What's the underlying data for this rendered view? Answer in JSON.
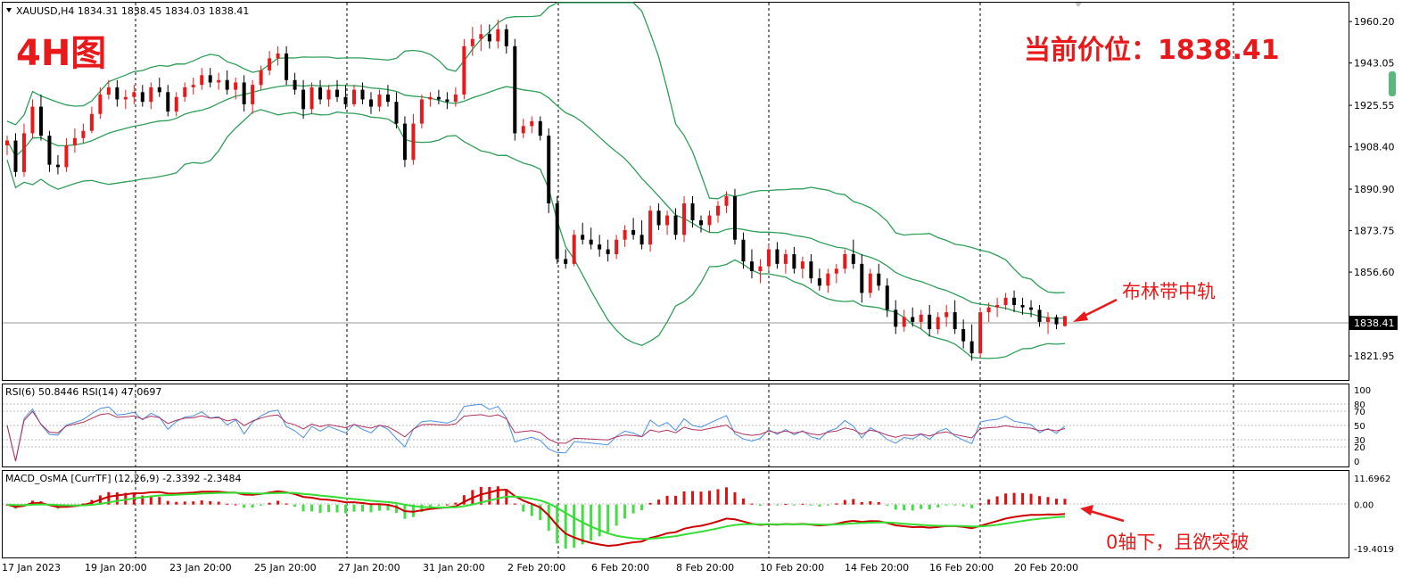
{
  "header": {
    "symbol_line": "XAUUSD,H4  1834.31 1838.45 1834.03 1838.41",
    "timeframe_label": "4H图",
    "price_label": "当前价位：1838.41",
    "boll_annotation": "布林带中轨",
    "macd_annotation": "0轴下，且欲突破"
  },
  "colors": {
    "bull": "#e8191a",
    "bear": "#000000",
    "bollinger": "#2e9e58",
    "rsi6": "#4a90e2",
    "rsi14": "#b03060",
    "macd_line": "#cc0000",
    "signal_line": "#33dd33",
    "osma_pos": "#dd1111",
    "osma_neg": "#44dd44"
  },
  "chart_data": {
    "type": "candlestick",
    "main": {
      "yticks": [
        "1960.20",
        "1943.05",
        "1925.55",
        "1908.40",
        "1890.90",
        "1873.75",
        "1856.60",
        "1838.41",
        "1821.95"
      ],
      "current_price": "1838.41",
      "ylim": [
        1812,
        1968
      ],
      "candles": [
        [
          1909,
          1913,
          1905,
          1911
        ],
        [
          1911,
          1914,
          1896,
          1898
        ],
        [
          1898,
          1918,
          1896,
          1914
        ],
        [
          1914,
          1928,
          1912,
          1925
        ],
        [
          1925,
          1930,
          1911,
          1913
        ],
        [
          1913,
          1915,
          1898,
          1901
        ],
        [
          1901,
          1905,
          1897,
          1900
        ],
        [
          1900,
          1912,
          1898,
          1909
        ],
        [
          1909,
          1916,
          1906,
          1912
        ],
        [
          1912,
          1918,
          1910,
          1915
        ],
        [
          1915,
          1925,
          1914,
          1922
        ],
        [
          1922,
          1933,
          1920,
          1930
        ],
        [
          1930,
          1936,
          1928,
          1933
        ],
        [
          1933,
          1936,
          1925,
          1928
        ],
        [
          1928,
          1932,
          1924,
          1929
        ],
        [
          1929,
          1934,
          1926,
          1931
        ],
        [
          1931,
          1934,
          1925,
          1927
        ],
        [
          1927,
          1935,
          1924,
          1933
        ],
        [
          1933,
          1937,
          1929,
          1931
        ],
        [
          1931,
          1934,
          1921,
          1923
        ],
        [
          1923,
          1931,
          1921,
          1929
        ],
        [
          1929,
          1935,
          1927,
          1933
        ],
        [
          1933,
          1937,
          1930,
          1934
        ],
        [
          1934,
          1941,
          1932,
          1938
        ],
        [
          1938,
          1941,
          1933,
          1935
        ],
        [
          1935,
          1939,
          1932,
          1936
        ],
        [
          1936,
          1940,
          1930,
          1932
        ],
        [
          1932,
          1937,
          1928,
          1935
        ],
        [
          1935,
          1938,
          1923,
          1926
        ],
        [
          1926,
          1936,
          1922,
          1934
        ],
        [
          1934,
          1942,
          1932,
          1940
        ],
        [
          1940,
          1948,
          1938,
          1945
        ],
        [
          1945,
          1950,
          1942,
          1947
        ],
        [
          1947,
          1950,
          1934,
          1936
        ],
        [
          1936,
          1939,
          1930,
          1932
        ],
        [
          1932,
          1936,
          1920,
          1924
        ],
        [
          1924,
          1935,
          1922,
          1933
        ],
        [
          1933,
          1936,
          1926,
          1928
        ],
        [
          1928,
          1934,
          1925,
          1932
        ],
        [
          1932,
          1936,
          1927,
          1929
        ],
        [
          1929,
          1934,
          1924,
          1926
        ],
        [
          1926,
          1934,
          1925,
          1932
        ],
        [
          1932,
          1935,
          1926,
          1928
        ],
        [
          1928,
          1931,
          1922,
          1925
        ],
        [
          1925,
          1932,
          1923,
          1930
        ],
        [
          1930,
          1934,
          1925,
          1927
        ],
        [
          1927,
          1931,
          1916,
          1918
        ],
        [
          1918,
          1921,
          1900,
          1903
        ],
        [
          1903,
          1922,
          1901,
          1918
        ],
        [
          1918,
          1930,
          1916,
          1928
        ],
        [
          1928,
          1931,
          1925,
          1929
        ],
        [
          1929,
          1932,
          1926,
          1928
        ],
        [
          1928,
          1931,
          1924,
          1927
        ],
        [
          1927,
          1933,
          1925,
          1930
        ],
        [
          1930,
          1953,
          1928,
          1950
        ],
        [
          1950,
          1958,
          1946,
          1953
        ],
        [
          1953,
          1959,
          1948,
          1955
        ],
        [
          1955,
          1959,
          1949,
          1952
        ],
        [
          1952,
          1961,
          1949,
          1957
        ],
        [
          1957,
          1959,
          1947,
          1950
        ],
        [
          1950,
          1953,
          1911,
          1914
        ],
        [
          1914,
          1920,
          1912,
          1917
        ],
        [
          1917,
          1921,
          1914,
          1919
        ],
        [
          1919,
          1921,
          1911,
          1913
        ],
        [
          1913,
          1916,
          1881,
          1885
        ],
        [
          1885,
          1888,
          1860,
          1862
        ],
        [
          1862,
          1866,
          1858,
          1860
        ],
        [
          1860,
          1874,
          1859,
          1872
        ],
        [
          1872,
          1877,
          1868,
          1870
        ],
        [
          1870,
          1875,
          1866,
          1868
        ],
        [
          1868,
          1872,
          1863,
          1866
        ],
        [
          1866,
          1870,
          1861,
          1864
        ],
        [
          1864,
          1872,
          1862,
          1870
        ],
        [
          1870,
          1876,
          1867,
          1874
        ],
        [
          1874,
          1879,
          1870,
          1872
        ],
        [
          1872,
          1878,
          1866,
          1868
        ],
        [
          1868,
          1884,
          1865,
          1882
        ],
        [
          1882,
          1885,
          1874,
          1876
        ],
        [
          1876,
          1882,
          1872,
          1880
        ],
        [
          1880,
          1883,
          1870,
          1872
        ],
        [
          1872,
          1888,
          1869,
          1885
        ],
        [
          1885,
          1888,
          1875,
          1878
        ],
        [
          1878,
          1880,
          1873,
          1876
        ],
        [
          1876,
          1882,
          1873,
          1880
        ],
        [
          1880,
          1886,
          1877,
          1884
        ],
        [
          1884,
          1890,
          1881,
          1888
        ],
        [
          1888,
          1891,
          1868,
          1870
        ],
        [
          1870,
          1873,
          1858,
          1861
        ],
        [
          1861,
          1866,
          1854,
          1857
        ],
        [
          1857,
          1862,
          1852,
          1859
        ],
        [
          1859,
          1868,
          1857,
          1866
        ],
        [
          1866,
          1869,
          1858,
          1860
        ],
        [
          1860,
          1866,
          1856,
          1864
        ],
        [
          1864,
          1867,
          1856,
          1858
        ],
        [
          1858,
          1863,
          1854,
          1861
        ],
        [
          1861,
          1864,
          1852,
          1854
        ],
        [
          1854,
          1858,
          1849,
          1851
        ],
        [
          1851,
          1858,
          1848,
          1856
        ],
        [
          1856,
          1860,
          1852,
          1858
        ],
        [
          1858,
          1866,
          1856,
          1864
        ],
        [
          1864,
          1870,
          1858,
          1860
        ],
        [
          1860,
          1864,
          1844,
          1848
        ],
        [
          1848,
          1858,
          1846,
          1856
        ],
        [
          1856,
          1860,
          1849,
          1851
        ],
        [
          1851,
          1854,
          1838,
          1841
        ],
        [
          1841,
          1845,
          1831,
          1834
        ],
        [
          1834,
          1841,
          1832,
          1838
        ],
        [
          1838,
          1842,
          1834,
          1836
        ],
        [
          1836,
          1841,
          1833,
          1839
        ],
        [
          1839,
          1843,
          1830,
          1833
        ],
        [
          1833,
          1840,
          1831,
          1838
        ],
        [
          1838,
          1843,
          1834,
          1840
        ],
        [
          1840,
          1845,
          1831,
          1833
        ],
        [
          1833,
          1837,
          1825,
          1828
        ],
        [
          1828,
          1835,
          1820,
          1823
        ],
        [
          1823,
          1842,
          1821,
          1840
        ],
        [
          1840,
          1844,
          1836,
          1842
        ],
        [
          1842,
          1846,
          1838,
          1843
        ],
        [
          1843,
          1848,
          1841,
          1846
        ],
        [
          1846,
          1849,
          1840,
          1843
        ],
        [
          1843,
          1846,
          1839,
          1842
        ],
        [
          1842,
          1845,
          1838,
          1841
        ],
        [
          1841,
          1843,
          1834,
          1836
        ],
        [
          1836,
          1840,
          1831,
          1838
        ],
        [
          1838,
          1839,
          1833,
          1835
        ],
        [
          1834.31,
          1838.45,
          1834.03,
          1838.41
        ]
      ]
    },
    "rsi": {
      "title": "RSI(6) 50.8446  RSI(14) 47.0697",
      "yticks": [
        "100",
        "80",
        "70",
        "50",
        "30",
        "20",
        "0"
      ],
      "levels": [
        80,
        70,
        50,
        30,
        20
      ],
      "ylim": [
        0,
        100
      ]
    },
    "macd": {
      "title": "MACD_OsMA [CurrTF] (12,26,9) -2.3392 -2.3484",
      "yticks": [
        "11.6962",
        "0.00",
        "-19.4019"
      ],
      "ylim": [
        -19.4019,
        11.6962
      ]
    },
    "xticks": [
      "17 Jan 2023",
      "19 Jan 20:00",
      "23 Jan 20:00",
      "25 Jan 20:00",
      "27 Jan 20:00",
      "31 Jan 20:00",
      "2 Feb 20:00",
      "6 Feb 20:00",
      "8 Feb 20:00",
      "10 Feb 20:00",
      "14 Feb 20:00",
      "16 Feb 20:00",
      "20 Feb 20:00"
    ]
  }
}
